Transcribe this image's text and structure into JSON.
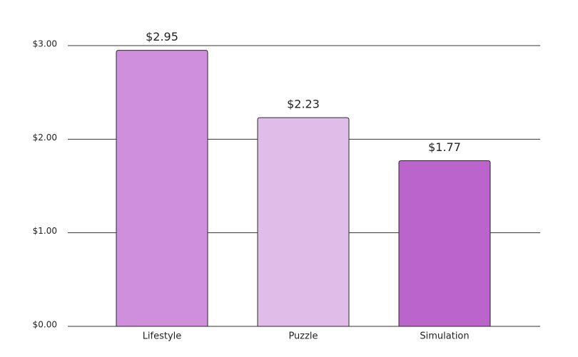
{
  "chart_data": {
    "type": "bar",
    "categories": [
      "Lifestyle",
      "Puzzle",
      "Simulation"
    ],
    "values": [
      2.95,
      2.23,
      1.77
    ],
    "value_labels": [
      "$2.95",
      "$2.23",
      "$1.77"
    ],
    "colors": [
      "#cf8fdd",
      "#e0bde9",
      "#bb64cc"
    ],
    "ylim": [
      0,
      3
    ],
    "yticks": [
      {
        "value": 0,
        "label": "$0.00"
      },
      {
        "value": 1,
        "label": "$1.00"
      },
      {
        "value": 2,
        "label": "$2.00"
      },
      {
        "value": 3,
        "label": "$3.00"
      }
    ],
    "grid": true
  }
}
